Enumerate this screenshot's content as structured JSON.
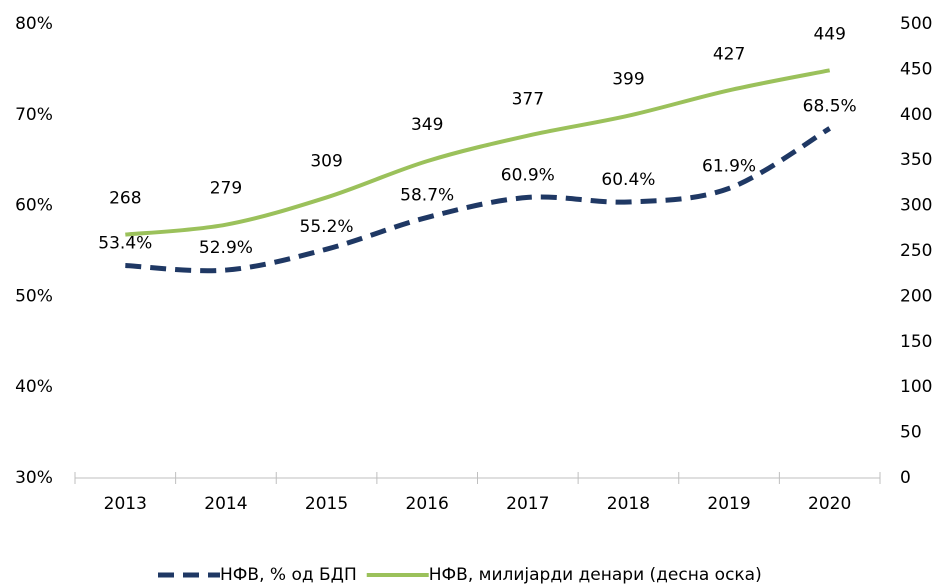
{
  "chart_data": {
    "type": "line",
    "categories": [
      "2013",
      "2014",
      "2015",
      "2016",
      "2017",
      "2018",
      "2019",
      "2020"
    ],
    "series": [
      {
        "name": "НФВ, % од БДП",
        "color": "#1f3864",
        "axis": "y",
        "dashed": true,
        "values": [
          53.4,
          52.9,
          55.2,
          58.7,
          60.9,
          60.4,
          61.9,
          68.5
        ],
        "value_labels": [
          "53.4%",
          "52.9%",
          "55.2%",
          "58.7%",
          "60.9%",
          "60.4%",
          "61.9%",
          "68.5%"
        ]
      },
      {
        "name": "НФВ, милијарди денари (десна оска)",
        "color": "#9bc15b",
        "axis": "y2",
        "dashed": false,
        "values": [
          268,
          279,
          309,
          349,
          377,
          399,
          427,
          449
        ]
      }
    ],
    "ylim": [
      30,
      80
    ],
    "yticks": [
      {
        "value": 30,
        "label": "30%"
      },
      {
        "value": 40,
        "label": "40%"
      },
      {
        "value": 50,
        "label": "50%"
      },
      {
        "value": 60,
        "label": "60%"
      },
      {
        "value": 70,
        "label": "70%"
      },
      {
        "value": 80,
        "label": "80%"
      }
    ],
    "y2lim": [
      0,
      500
    ],
    "y2ticks": [
      0,
      50,
      100,
      150,
      200,
      250,
      300,
      350,
      400,
      450,
      500
    ],
    "grid": false,
    "legend": "bottom"
  }
}
